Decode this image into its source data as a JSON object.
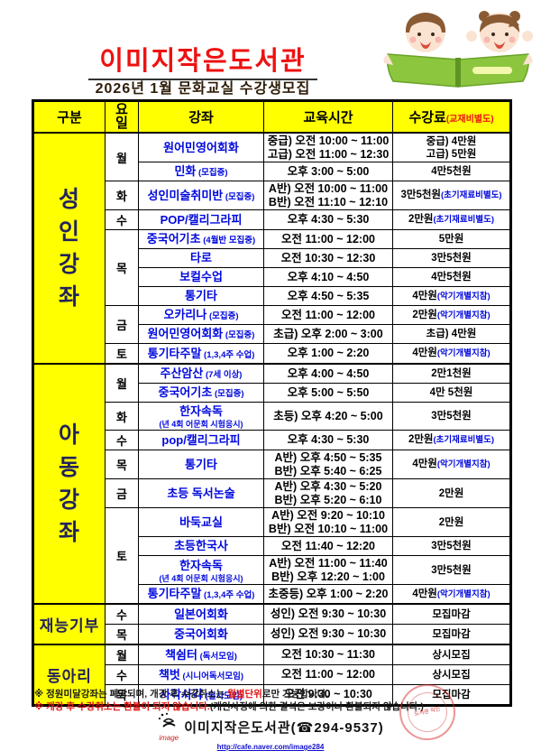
{
  "colors": {
    "accent_red": "#ee1111",
    "course_blue": "#0008dd",
    "header_yellow": "#ffff00",
    "note_red": "#e01010"
  },
  "header": {
    "title": "이미지작은도서관",
    "subtitle": "2026년 1월 문화교실 수강생모집",
    "illustration": "two-children-reading-green-book"
  },
  "table": {
    "columns": [
      "구분",
      "요일",
      "강좌",
      "교육시간",
      "수강료"
    ],
    "fee_header_note": "(교재비별도)",
    "groups": [
      {
        "category": "성인강좌",
        "vertical": true,
        "rows": [
          {
            "day": "월",
            "day_span": 2,
            "course": "원어민영어회화",
            "times": [
              "중급) 오전 10:00 ~ 11:00",
              "고급) 오전 11:00 ~ 12:30"
            ],
            "fees": [
              "중급) 4만원",
              "고급) 5만원"
            ]
          },
          {
            "course": "민화",
            "note": "(모집중)",
            "times": [
              "오후 3:00 ~ 5:00"
            ],
            "fees": [
              "4만5천원"
            ]
          },
          {
            "day": "화",
            "day_span": 1,
            "course": "성인미술취미반",
            "note": "(모집중)",
            "times": [
              "A반) 오전 10:00 ~ 11:00",
              "B반) 오전 11:10 ~ 12:10"
            ],
            "fees": [
              "3만5천원"
            ],
            "fee_note": "(초기재료비별도)"
          },
          {
            "day": "수",
            "day_span": 1,
            "course": "POP/캘리그라피",
            "times": [
              "오후 4:30 ~ 5:30"
            ],
            "fees": [
              "2만원"
            ],
            "fee_note": "(초기재료비별도)"
          },
          {
            "day": "목",
            "day_span": 4,
            "course": "중국어기초",
            "note": "(4월반 모집중)",
            "times": [
              "오전 11:00 ~ 12:00"
            ],
            "fees": [
              "5만원"
            ]
          },
          {
            "course": "타로",
            "times": [
              "오전 10:30 ~ 12:30"
            ],
            "fees": [
              "3만5천원"
            ]
          },
          {
            "course": "보컬수업",
            "times": [
              "오후 4:10 ~ 4:50"
            ],
            "fees": [
              "4만5천원"
            ]
          },
          {
            "course": "통기타",
            "times": [
              "오후 4:50 ~ 5:35"
            ],
            "fees": [
              "4만원"
            ],
            "fee_note": "(악기개별지참)"
          },
          {
            "day": "금",
            "day_span": 2,
            "course": "오카리나",
            "note": "(모집중)",
            "times": [
              "오전 11:00 ~ 12:00"
            ],
            "fees": [
              "2만원"
            ],
            "fee_note": "(악기개별지참)"
          },
          {
            "course": "원어민영어회화",
            "note": "(모집중)",
            "times": [
              "초급) 오후 2:00 ~ 3:00"
            ],
            "fees": [
              "초급) 4만원"
            ]
          },
          {
            "day": "토",
            "day_span": 1,
            "course": "통기타주말",
            "note": "(1,3,4주 수업)",
            "times": [
              "오후 1:00 ~ 2:20"
            ],
            "fees": [
              "4만원"
            ],
            "fee_note": "(악기개별지참)"
          }
        ]
      },
      {
        "category": "아동강좌",
        "vertical": true,
        "rows": [
          {
            "day": "월",
            "day_span": 2,
            "course": "주산암산",
            "note": "(7세 이상)",
            "times": [
              "오후 4:00 ~ 4:50"
            ],
            "fees": [
              "2만1천원"
            ]
          },
          {
            "course": "중국어기초",
            "note": "(모집중)",
            "times": [
              "오후 5:00 ~ 5:50"
            ],
            "fees": [
              "4만 5천원"
            ]
          },
          {
            "day": "화",
            "day_span": 1,
            "course": "한자속독",
            "note_below": "(년 4회 어문회 시험응시)",
            "times": [
              "초등) 오후 4:20 ~ 5:00"
            ],
            "fees": [
              "3만5천원"
            ]
          },
          {
            "day": "수",
            "day_span": 1,
            "course": "pop/캘리그라피",
            "times": [
              "오후 4:30 ~ 5:30"
            ],
            "fees": [
              "2만원"
            ],
            "fee_note": "(초기재료비별도)"
          },
          {
            "day": "목",
            "day_span": 1,
            "course": "통기타",
            "times": [
              "A반) 오후 4:50 ~ 5:35",
              "B반) 오후 5:40 ~ 6:25"
            ],
            "fees": [
              "4만원"
            ],
            "fee_note": "(악기개별지참)"
          },
          {
            "day": "금",
            "day_span": 1,
            "course": "초등 독서논술",
            "times": [
              "A반) 오후 4:30 ~ 5:20",
              "B반) 오후 5:20 ~ 6:10"
            ],
            "fees": [
              "2만원"
            ]
          },
          {
            "day": "토",
            "day_span": 4,
            "course": "바둑교실",
            "times": [
              "A반) 오전 9:20 ~ 10:10",
              "B반) 오전 10:10 ~ 11:00"
            ],
            "fees": [
              "2만원"
            ]
          },
          {
            "course": "초등한국사",
            "times": [
              "오전 11:40 ~ 12:20"
            ],
            "fees": [
              "3만5천원"
            ]
          },
          {
            "course": "한자속독",
            "note_below": "(년 4회 어문회 시험응시)",
            "times": [
              "A반) 오전 11:00 ~ 11:40",
              "B반) 오후 12:20 ~ 1:00"
            ],
            "fees": [
              "3만5천원"
            ]
          },
          {
            "course": "통기타주말",
            "note": "(1,3,4주 수업)",
            "times": [
              "초중등) 오후 1:00 ~ 2:20"
            ],
            "fees": [
              "4만원"
            ],
            "fee_note": "(악기개별지참)"
          }
        ]
      },
      {
        "category": "재능기부",
        "vertical": false,
        "rows": [
          {
            "day": "수",
            "day_span": 1,
            "course": "일본어회화",
            "times": [
              "성인) 오전 9:30 ~ 10:30"
            ],
            "fees": [
              "모집마감"
            ]
          },
          {
            "day": "목",
            "day_span": 1,
            "course": "중국어회화",
            "times": [
              "성인) 오전 9:30 ~ 10:30"
            ],
            "fees": [
              "모집마감"
            ]
          }
        ]
      },
      {
        "category": "동아리",
        "vertical": false,
        "rows": [
          {
            "day": "월",
            "day_span": 1,
            "course": "책쉼터",
            "note": "(독서모임)",
            "times": [
              "오전 10:30 ~ 11:30"
            ],
            "fees": [
              "상시모집"
            ]
          },
          {
            "day": "수",
            "day_span": 1,
            "course": "책벗",
            "note": "(시니어독서모임)",
            "times": [
              "오전 11:00 ~ 12:00"
            ],
            "fees": [
              "상시모집"
            ]
          },
          {
            "day": "목",
            "day_span": 1,
            "course": "사각사각",
            "note": "(필사모임)",
            "times": [
              "오전 9:30 ~ 10:30"
            ],
            "fees": [
              "모집마감"
            ]
          }
        ]
      }
    ]
  },
  "notes": [
    {
      "segments": [
        {
          "t": "※ 정원미달강좌는 폐강되며, 개강 후 수강취소는 ",
          "c": "black"
        },
        {
          "t": "월별단위",
          "c": "red"
        },
        {
          "t": "로만 가능합니다.",
          "c": "black"
        }
      ]
    },
    {
      "segments": [
        {
          "t": "※ 개강 후 수강취소는 환불이 되지 않습니다.",
          "c": "red"
        },
        {
          "t": "(개인사정에 의한 결석은 보강이나 환불되지 않습니다.)",
          "c": "black"
        }
      ]
    }
  ],
  "footer": {
    "logo_word": "image",
    "library_name": "이미지작은도서관",
    "phone": "(☎294-9537)",
    "url": "http://cafe.naver.com/image284",
    "stamp_text": "도서관 직인"
  }
}
